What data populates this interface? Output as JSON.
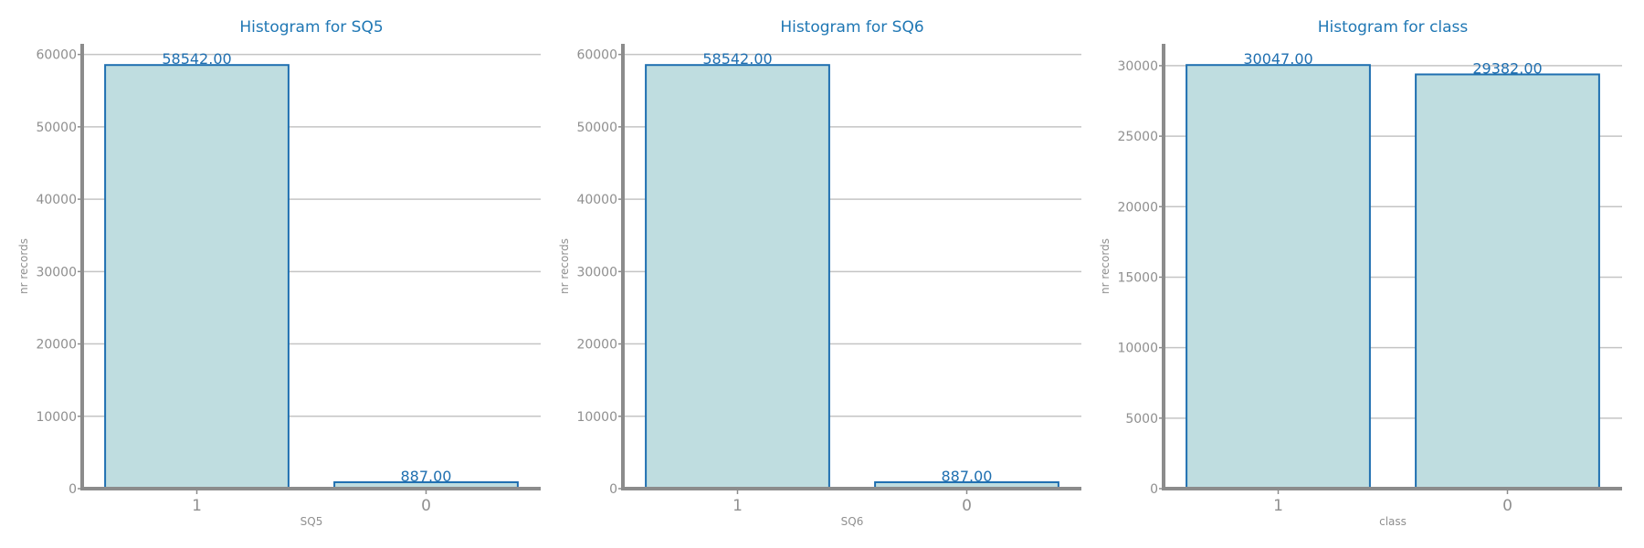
{
  "colors": {
    "title": "#1f77b4",
    "bar_fill": "#bfdde0",
    "bar_edge": "#1f6fb0",
    "data_label": "#1f6fb0",
    "grid": "#c4c4c4",
    "axis_spine": "#8c8c8c",
    "tick_label": "#8f8f8f",
    "axis_title": "#8f8f8f"
  },
  "chart_data": [
    {
      "type": "bar",
      "title": "Histogram for SQ5",
      "xlabel": "SQ5",
      "ylabel": "nr records",
      "categories": [
        "1",
        "0"
      ],
      "values": [
        58542.0,
        887.0
      ],
      "value_labels": [
        "58542.00",
        "887.00"
      ],
      "ylim": [
        0,
        61470
      ],
      "yticks": [
        0,
        10000,
        20000,
        30000,
        40000,
        50000,
        60000
      ],
      "ytick_labels": [
        "0",
        "10000",
        "20000",
        "30000",
        "40000",
        "50000",
        "60000"
      ],
      "grid": true,
      "legend": false
    },
    {
      "type": "bar",
      "title": "Histogram for SQ6",
      "xlabel": "SQ6",
      "ylabel": "nr records",
      "categories": [
        "1",
        "0"
      ],
      "values": [
        58542.0,
        887.0
      ],
      "value_labels": [
        "58542.00",
        "887.00"
      ],
      "ylim": [
        0,
        61470
      ],
      "yticks": [
        0,
        10000,
        20000,
        30000,
        40000,
        50000,
        60000
      ],
      "ytick_labels": [
        "0",
        "10000",
        "20000",
        "30000",
        "40000",
        "50000",
        "60000"
      ],
      "grid": true,
      "legend": false
    },
    {
      "type": "bar",
      "title": "Histogram for class",
      "xlabel": "class",
      "ylabel": "nr records",
      "categories": [
        "1",
        "0"
      ],
      "values": [
        30047.0,
        29382.0
      ],
      "value_labels": [
        "30047.00",
        "29382.00"
      ],
      "ylim": [
        0,
        31550
      ],
      "yticks": [
        0,
        5000,
        10000,
        15000,
        20000,
        25000,
        30000
      ],
      "ytick_labels": [
        "0",
        "5000",
        "10000",
        "15000",
        "20000",
        "25000",
        "30000"
      ],
      "grid": true,
      "legend": false
    }
  ]
}
